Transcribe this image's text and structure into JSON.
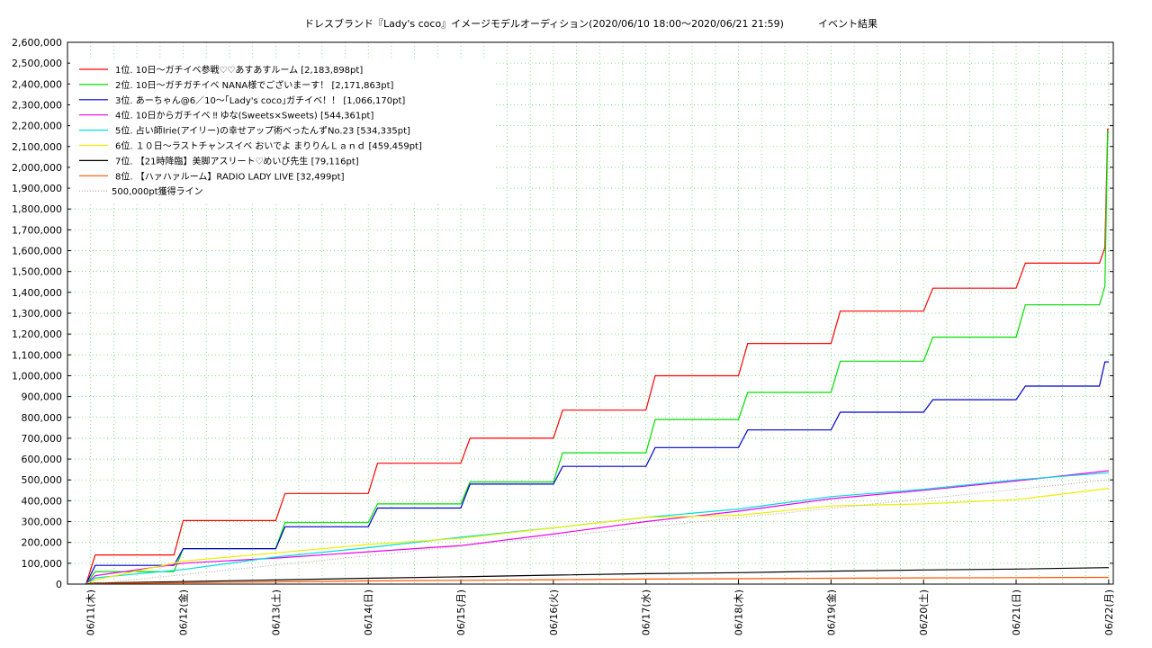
{
  "chart_data": {
    "type": "line",
    "title": "ドレスブランド『Lady's coco』イメージモデルオーディション(2020/06/10 18:00～2020/06/21 21:59)",
    "subtitle": "イベント結果",
    "xlabel": "",
    "ylabel": "",
    "ylim": [
      0,
      2600000
    ],
    "y_ticks": [
      "0",
      "100,000",
      "200,000",
      "300,000",
      "400,000",
      "500,000",
      "600,000",
      "700,000",
      "800,000",
      "900,000",
      "1,000,000",
      "1,100,000",
      "1,200,000",
      "1,300,000",
      "1,400,000",
      "1,500,000",
      "1,600,000",
      "1,700,000",
      "1,800,000",
      "1,900,000",
      "2,000,000",
      "2,100,000",
      "2,200,000",
      "2,300,000",
      "2,400,000",
      "2,500,000",
      "2,600,000"
    ],
    "x_ticks": [
      "06/11(木)",
      "06/12(金)",
      "06/13(土)",
      "06/14(日)",
      "06/15(月)",
      "06/16(火)",
      "06/17(水)",
      "06/18(木)",
      "06/19(金)",
      "06/20(土)",
      "06/21(日)",
      "06/22(月)"
    ],
    "grid": true,
    "legend_position": "top-left",
    "series": [
      {
        "name": "1位. 10日～ガチイベ参戦♡♡あすあすルーム [2,183,898pt]",
        "color": "#ff0000",
        "x": [
          -0.05,
          0.05,
          0.9,
          1.0,
          2.0,
          2.1,
          3.0,
          3.1,
          4.0,
          4.1,
          5.0,
          5.1,
          6.0,
          6.1,
          7.0,
          7.1,
          8.0,
          8.1,
          9.0,
          9.1,
          10.0,
          10.1,
          10.9,
          10.96,
          10.99,
          11.0
        ],
        "y": [
          0,
          140000,
          140000,
          305000,
          305000,
          435000,
          435000,
          580000,
          580000,
          700000,
          700000,
          835000,
          835000,
          1000000,
          1000000,
          1155000,
          1155000,
          1310000,
          1310000,
          1420000,
          1420000,
          1540000,
          1540000,
          1615000,
          2183898,
          2183898
        ]
      },
      {
        "name": "2位. 10日～ガチガチイベ NANA様でございまーす！ [2,171,863pt]",
        "color": "#00dd00",
        "x": [
          -0.05,
          0.05,
          0.9,
          1.0,
          2.0,
          2.1,
          3.0,
          3.1,
          4.0,
          4.1,
          5.0,
          5.1,
          6.0,
          6.1,
          7.0,
          7.1,
          8.0,
          8.1,
          9.0,
          9.1,
          10.0,
          10.1,
          10.9,
          10.96,
          10.99,
          11.0
        ],
        "y": [
          0,
          60000,
          60000,
          170000,
          170000,
          295000,
          295000,
          385000,
          385000,
          490000,
          490000,
          630000,
          630000,
          790000,
          790000,
          920000,
          920000,
          1070000,
          1070000,
          1185000,
          1185000,
          1340000,
          1340000,
          1430000,
          2171863,
          2171863
        ]
      },
      {
        "name": "3位. あーちゃん@6／10～｢Lady's coco｣ガチイベ！！ [1,066,170pt]",
        "color": "#0000cc",
        "x": [
          -0.05,
          0.05,
          0.9,
          1.0,
          2.0,
          2.1,
          3.0,
          3.1,
          4.0,
          4.1,
          5.0,
          5.1,
          6.0,
          6.1,
          7.0,
          7.1,
          8.0,
          8.1,
          9.0,
          9.1,
          10.0,
          10.1,
          10.9,
          10.96,
          11.0
        ],
        "y": [
          0,
          90000,
          90000,
          170000,
          170000,
          275000,
          275000,
          365000,
          365000,
          480000,
          480000,
          565000,
          565000,
          655000,
          655000,
          740000,
          740000,
          825000,
          825000,
          885000,
          885000,
          950000,
          950000,
          1066170,
          1066170
        ]
      },
      {
        "name": "4位. 10日からガチイベ ‼ ゆな(Sweets×Sweets) [544,361pt]",
        "color": "#ee00ee",
        "x": [
          -0.05,
          0.05,
          1.0,
          2.0,
          3.0,
          4.0,
          5.0,
          6.0,
          7.0,
          8.0,
          9.0,
          10.0,
          11.0
        ],
        "y": [
          0,
          40000,
          100000,
          125000,
          155000,
          185000,
          240000,
          300000,
          350000,
          410000,
          450000,
          495000,
          544361
        ]
      },
      {
        "name": "5位. 占い師Irie(アイリー)の幸せアップ術べったんずNo.23 [534,335pt]",
        "color": "#00dddd",
        "x": [
          -0.05,
          0.05,
          1.0,
          2.0,
          3.0,
          4.0,
          5.0,
          6.0,
          7.0,
          8.0,
          9.0,
          10.0,
          11.0
        ],
        "y": [
          0,
          30000,
          70000,
          130000,
          175000,
          225000,
          270000,
          320000,
          360000,
          420000,
          455000,
          500000,
          534335
        ]
      },
      {
        "name": "6位. １０日～ラストチャンスイベ おいでよ まりりんＬａｎｄ [459,459pt]",
        "color": "#eeee00",
        "x": [
          -0.05,
          0.05,
          1.0,
          2.0,
          3.0,
          4.0,
          5.0,
          6.0,
          7.0,
          8.0,
          9.0,
          10.0,
          11.0
        ],
        "y": [
          0,
          20000,
          110000,
          150000,
          190000,
          220000,
          270000,
          320000,
          330000,
          375000,
          385000,
          405000,
          459459
        ]
      },
      {
        "name": "7位. 【21時降臨】美脚アスリート♡めいび先生 [79,116pt]",
        "color": "#000000",
        "x": [
          -0.05,
          0.05,
          1.0,
          2.0,
          3.0,
          4.0,
          5.0,
          6.0,
          7.0,
          8.0,
          9.0,
          10.0,
          11.0
        ],
        "y": [
          0,
          5000,
          12000,
          20000,
          28000,
          35000,
          43000,
          50000,
          55000,
          62000,
          68000,
          72000,
          79116
        ]
      },
      {
        "name": "8位. 【ハァハァルーム】RADIO LADY LIVE [32,499pt]",
        "color": "#ff5500",
        "x": [
          -0.05,
          0.05,
          1.0,
          2.0,
          3.0,
          4.0,
          5.0,
          6.0,
          7.0,
          8.0,
          9.0,
          10.0,
          11.0
        ],
        "y": [
          0,
          3000,
          7000,
          11000,
          15000,
          18000,
          21000,
          24000,
          26000,
          28000,
          30000,
          31000,
          32499
        ]
      },
      {
        "name": "500,000pt獲得ライン",
        "color": "#b8a0a0",
        "dotted": true,
        "x": [
          0.0,
          11.0
        ],
        "y": [
          0,
          500000
        ]
      }
    ]
  }
}
